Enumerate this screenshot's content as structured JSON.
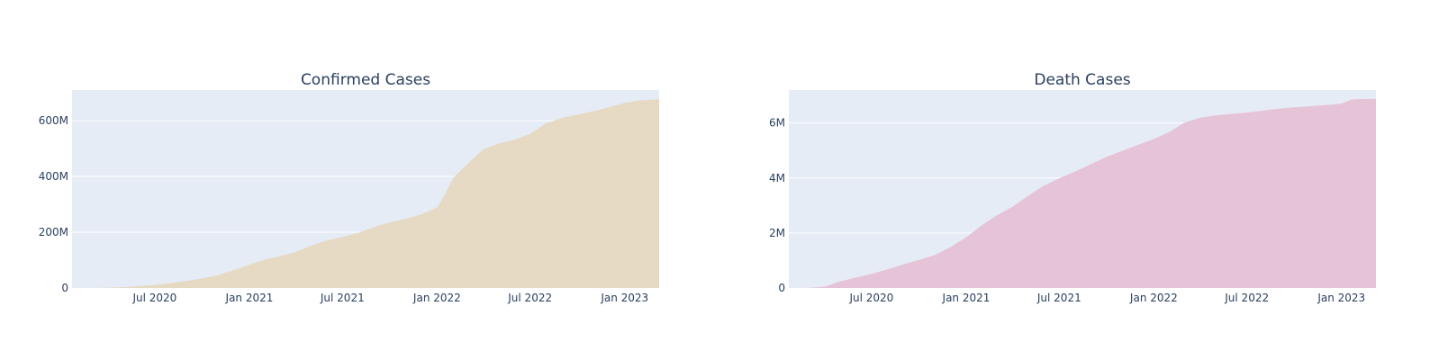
{
  "chart_data": [
    {
      "type": "area",
      "title": "Confirmed Cases",
      "xlabel": "",
      "ylabel": "",
      "color": "#e6d9c2",
      "x_range": [
        "2020-01-22",
        "2023-03-09"
      ],
      "ylim": [
        0,
        710000000
      ],
      "y_ticks": [
        0,
        200000000,
        400000000,
        600000000
      ],
      "y_tick_labels": [
        "0",
        "200M",
        "400M",
        "600M"
      ],
      "x_ticks": [
        "2020-07-01",
        "2021-01-01",
        "2021-07-01",
        "2022-01-01",
        "2022-07-01",
        "2023-01-01"
      ],
      "x_tick_labels": [
        "Jul 2020",
        "Jan 2021",
        "Jul 2021",
        "Jan 2022",
        "Jul 2022",
        "Jan 2023"
      ],
      "x": [
        "2020-01-22",
        "2020-03-01",
        "2020-04-01",
        "2020-05-01",
        "2020-06-01",
        "2020-07-01",
        "2020-08-01",
        "2020-09-01",
        "2020-10-01",
        "2020-11-01",
        "2020-12-01",
        "2021-01-01",
        "2021-02-01",
        "2021-03-01",
        "2021-04-01",
        "2021-05-01",
        "2021-06-01",
        "2021-07-01",
        "2021-08-01",
        "2021-09-01",
        "2021-10-01",
        "2021-11-01",
        "2021-12-01",
        "2022-01-01",
        "2022-01-15",
        "2022-02-01",
        "2022-03-01",
        "2022-04-01",
        "2022-05-01",
        "2022-06-01",
        "2022-07-01",
        "2022-08-01",
        "2022-09-01",
        "2022-10-01",
        "2022-11-01",
        "2022-12-01",
        "2023-01-01",
        "2023-02-01",
        "2023-03-09"
      ],
      "y": [
        0,
        90000,
        900000,
        3300000,
        6300000,
        10600000,
        17600000,
        25500000,
        34000000,
        46500000,
        63600000,
        84000000,
        103000000,
        114000000,
        129000000,
        152000000,
        171000000,
        183000000,
        198000000,
        219000000,
        235000000,
        248000000,
        264000000,
        289000000,
        330000000,
        394000000,
        445000000,
        498000000,
        518000000,
        532000000,
        553000000,
        590000000,
        610000000,
        622000000,
        634000000,
        648000000,
        664000000,
        673000000,
        677000000
      ]
    },
    {
      "type": "area",
      "title": "Death Cases",
      "xlabel": "",
      "ylabel": "",
      "color": "#e6c2d6",
      "x_range": [
        "2020-01-22",
        "2023-03-09"
      ],
      "ylim": [
        0,
        7200000
      ],
      "y_ticks": [
        0,
        2000000,
        4000000,
        6000000
      ],
      "y_tick_labels": [
        "0",
        "2M",
        "4M",
        "6M"
      ],
      "x_ticks": [
        "2020-07-01",
        "2021-01-01",
        "2021-07-01",
        "2022-01-01",
        "2022-07-01",
        "2023-01-01"
      ],
      "x_tick_labels": [
        "Jul 2020",
        "Jan 2021",
        "Jul 2021",
        "Jan 2022",
        "Jul 2022",
        "Jan 2023"
      ],
      "x": [
        "2020-01-22",
        "2020-03-01",
        "2020-04-01",
        "2020-05-01",
        "2020-06-01",
        "2020-07-01",
        "2020-08-01",
        "2020-09-01",
        "2020-10-01",
        "2020-11-01",
        "2020-12-01",
        "2021-01-01",
        "2021-02-01",
        "2021-03-01",
        "2021-04-01",
        "2021-05-01",
        "2021-06-01",
        "2021-07-01",
        "2021-08-01",
        "2021-09-01",
        "2021-10-01",
        "2021-11-01",
        "2021-12-01",
        "2022-01-01",
        "2022-02-01",
        "2022-03-01",
        "2022-04-01",
        "2022-05-01",
        "2022-06-01",
        "2022-07-01",
        "2022-08-01",
        "2022-09-01",
        "2022-10-01",
        "2022-11-01",
        "2022-12-01",
        "2023-01-01",
        "2023-01-20",
        "2023-02-01",
        "2023-03-09"
      ],
      "y": [
        0,
        3000,
        50000,
        240000,
        380000,
        510000,
        680000,
        860000,
        1020000,
        1200000,
        1480000,
        1840000,
        2290000,
        2640000,
        2950000,
        3350000,
        3720000,
        3990000,
        4240000,
        4510000,
        4770000,
        4990000,
        5200000,
        5420000,
        5680000,
        6010000,
        6190000,
        6280000,
        6330000,
        6380000,
        6450000,
        6520000,
        6570000,
        6610000,
        6650000,
        6700000,
        6850000,
        6870000,
        6880000
      ]
    }
  ]
}
